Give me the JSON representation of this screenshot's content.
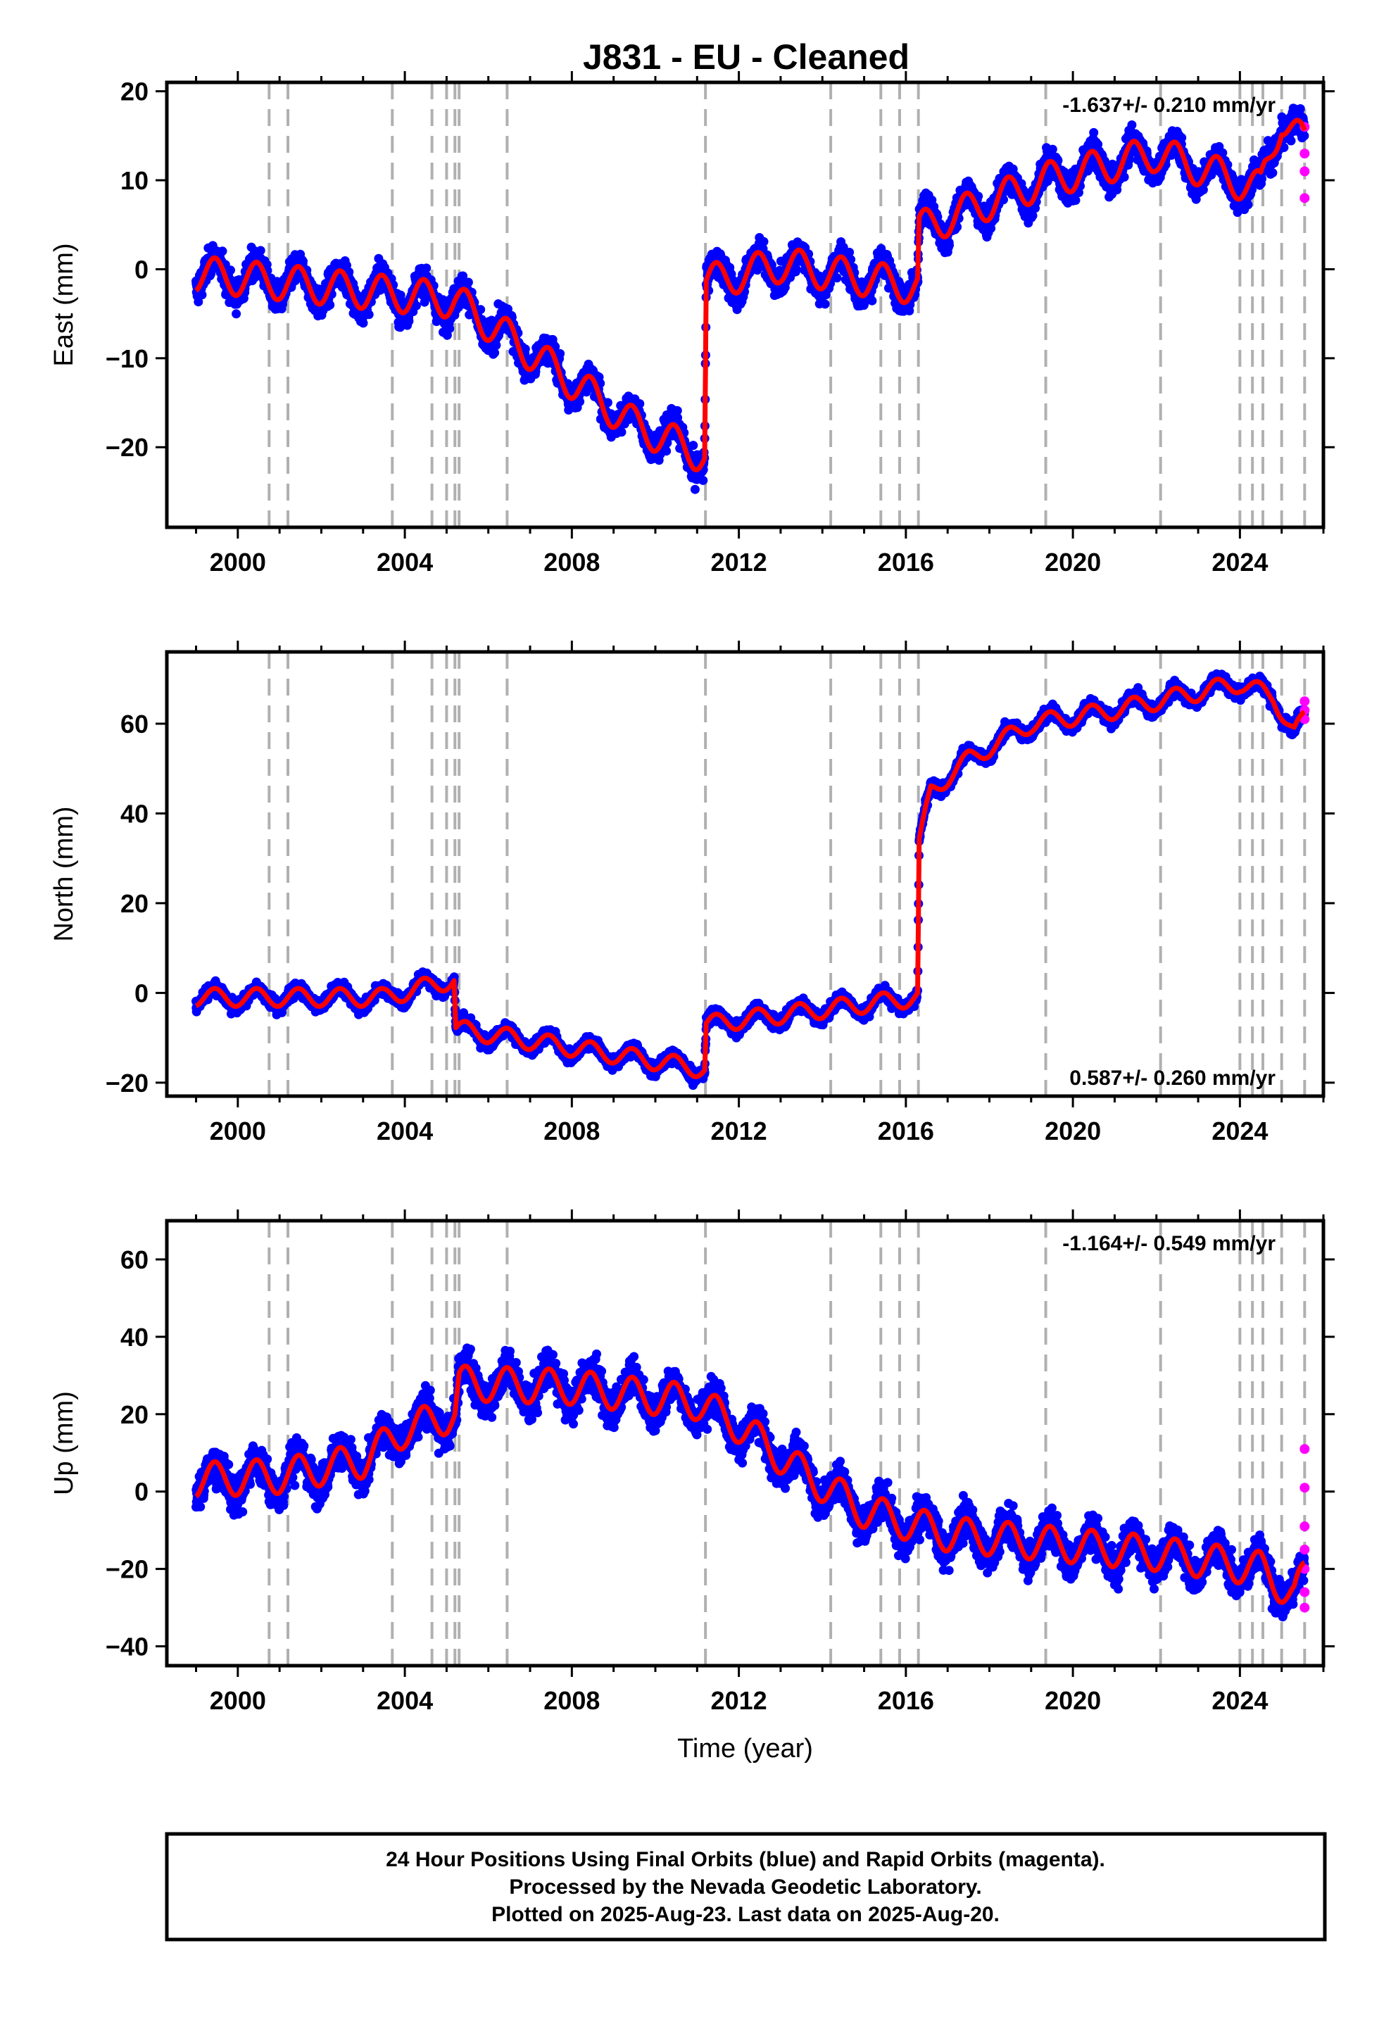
{
  "title": "J831  - EU - Cleaned",
  "footer": {
    "line1": "24 Hour Positions Using Final Orbits (blue) and Rapid Orbits (magenta).",
    "line2": "Processed by the Nevada Geodetic Laboratory.",
    "line3": "Plotted on 2025-Aug-23. Last data on 2025-Aug-20."
  },
  "colors": {
    "final": "#0000ff",
    "rapid": "#ff00ff",
    "model": "#ff0000",
    "event_line": "#b0b0b0"
  },
  "chart_data": [
    {
      "type": "scatter",
      "component": "east",
      "title": "",
      "xlabel": "",
      "ylabel": "East (mm)",
      "xlim": [
        1998.3,
        2026.0
      ],
      "ylim": [
        -29,
        21
      ],
      "xticks": [
        2000,
        2004,
        2008,
        2012,
        2016,
        2020,
        2024
      ],
      "yticks": [
        -20,
        -10,
        0,
        10,
        20
      ],
      "rate_text": "-1.637+/- 0.210 mm/yr",
      "rate_position": "top-right",
      "event_lines": [
        2000.75,
        2001.2,
        2003.7,
        2004.65,
        2005.0,
        2005.2,
        2005.3,
        2006.45,
        2011.2,
        2014.2,
        2015.4,
        2015.85,
        2016.3,
        2019.35,
        2022.1,
        2024.0,
        2024.3,
        2024.55,
        2025.0,
        2025.55
      ],
      "trend": [
        [
          1999.0,
          -0.5
        ],
        [
          2005.2,
          -3.5
        ],
        [
          2007.5,
          -11
        ],
        [
          2009.5,
          -17.5
        ],
        [
          2011.18,
          -21
        ],
        [
          2011.22,
          -1.5
        ],
        [
          2013.0,
          0.5
        ],
        [
          2016.28,
          -2
        ],
        [
          2016.32,
          4.5
        ],
        [
          2019.35,
          10
        ],
        [
          2022.0,
          13
        ],
        [
          2024.5,
          9
        ],
        [
          2024.6,
          11
        ],
        [
          2025.0,
          17
        ],
        [
          2025.55,
          14
        ]
      ],
      "seasonal_amp": 2.0,
      "scatter_sd": 1.6,
      "rapid": [
        [
          2025.55,
          16
        ],
        [
          2025.55,
          13
        ],
        [
          2025.55,
          11
        ],
        [
          2025.55,
          8
        ]
      ]
    },
    {
      "type": "scatter",
      "component": "north",
      "title": "",
      "xlabel": "",
      "ylabel": "North (mm)",
      "xlim": [
        1998.3,
        2026.0
      ],
      "ylim": [
        -23,
        76
      ],
      "xticks": [
        2000,
        2004,
        2008,
        2012,
        2016,
        2020,
        2024
      ],
      "yticks": [
        -20,
        0,
        20,
        40,
        60
      ],
      "rate_text": "0.587+/- 0.260 mm/yr",
      "rate_position": "bottom-right",
      "event_lines": [
        2000.75,
        2001.2,
        2003.7,
        2004.65,
        2005.0,
        2005.2,
        2005.3,
        2006.45,
        2011.2,
        2014.2,
        2015.4,
        2015.85,
        2016.3,
        2019.35,
        2022.1,
        2024.0,
        2024.3,
        2024.55,
        2025.0,
        2025.55
      ],
      "trend": [
        [
          1999.0,
          -1
        ],
        [
          2003.5,
          -1
        ],
        [
          2005.18,
          3
        ],
        [
          2005.22,
          -8
        ],
        [
          2011.18,
          -17
        ],
        [
          2011.22,
          -7
        ],
        [
          2016.28,
          -1
        ],
        [
          2016.32,
          33
        ],
        [
          2016.6,
          45
        ],
        [
          2017.5,
          52
        ],
        [
          2019.0,
          60
        ],
        [
          2021.0,
          63
        ],
        [
          2022.5,
          66
        ],
        [
          2024.0,
          69
        ],
        [
          2024.8,
          66
        ],
        [
          2025.3,
          58
        ],
        [
          2025.55,
          61
        ]
      ],
      "seasonal_amp": 2.0,
      "scatter_sd": 1.4,
      "rapid": [
        [
          2025.55,
          65
        ],
        [
          2025.55,
          63
        ],
        [
          2025.55,
          61
        ]
      ]
    },
    {
      "type": "scatter",
      "component": "up",
      "title": "",
      "xlabel": "Time (year)",
      "ylabel": "Up (mm)",
      "xlim": [
        1998.3,
        2026.0
      ],
      "ylim": [
        -45,
        70
      ],
      "xticks": [
        2000,
        2004,
        2008,
        2012,
        2016,
        2020,
        2024
      ],
      "yticks": [
        -40,
        -20,
        0,
        20,
        40,
        60
      ],
      "rate_text": "-1.164+/- 0.549 mm/yr",
      "rate_position": "top-right",
      "event_lines": [
        2000.75,
        2001.2,
        2003.7,
        2004.65,
        2005.0,
        2005.2,
        2005.3,
        2006.45,
        2011.2,
        2014.2,
        2015.4,
        2015.85,
        2016.3,
        2019.35,
        2022.1,
        2024.0,
        2024.3,
        2024.55,
        2025.0,
        2025.55
      ],
      "trend": [
        [
          1999.0,
          3
        ],
        [
          2001.0,
          4
        ],
        [
          2003.0,
          8
        ],
        [
          2004.0,
          16
        ],
        [
          2005.2,
          20
        ],
        [
          2005.3,
          28
        ],
        [
          2008.0,
          27
        ],
        [
          2011.0,
          23
        ],
        [
          2012.0,
          17
        ],
        [
          2013.5,
          5
        ],
        [
          2015.0,
          -5
        ],
        [
          2017.0,
          -11
        ],
        [
          2020.0,
          -14
        ],
        [
          2022.0,
          -16
        ],
        [
          2024.5,
          -20
        ],
        [
          2025.3,
          -27
        ],
        [
          2025.55,
          -22
        ]
      ],
      "seasonal_amp": 4.5,
      "scatter_sd": 4.5,
      "rapid": [
        [
          2025.55,
          11
        ],
        [
          2025.55,
          1
        ],
        [
          2025.55,
          -9
        ],
        [
          2025.55,
          -15
        ],
        [
          2025.55,
          -20
        ],
        [
          2025.55,
          -26
        ],
        [
          2025.55,
          -30
        ]
      ]
    }
  ]
}
